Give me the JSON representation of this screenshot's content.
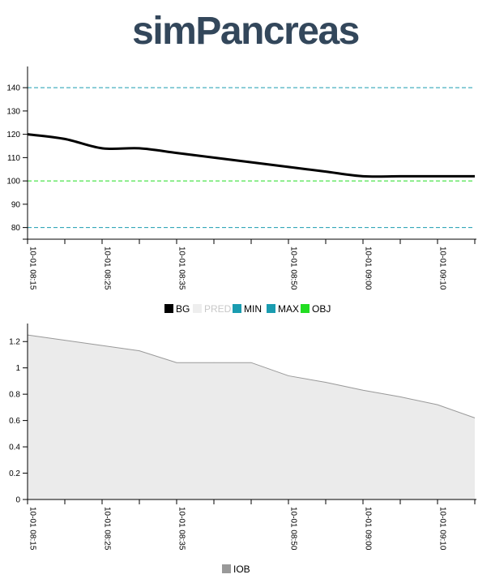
{
  "page": {
    "title": "simPancreas"
  },
  "chart_data": [
    {
      "type": "line",
      "x_type": "time",
      "x_ticks": [
        "10-01 08:15",
        "10-01 08:25",
        "10-01 08:35",
        "10-01 08:50",
        "10-01 09:00",
        "10-01 09:10"
      ],
      "xlim": [
        "10-01 08:15",
        "10-01 09:15"
      ],
      "ylim": [
        75,
        147
      ],
      "y_ticks": [
        80,
        90,
        100,
        110,
        120,
        130,
        140
      ],
      "series": [
        {
          "name": "BG",
          "color": "#000000",
          "x": [
            "10-01 08:15",
            "10-01 08:20",
            "10-01 08:25",
            "10-01 08:30",
            "10-01 08:35",
            "10-01 08:40",
            "10-01 08:45",
            "10-01 08:50",
            "10-01 08:55",
            "10-01 09:00",
            "10-01 09:05",
            "10-01 09:10",
            "10-01 09:15"
          ],
          "values": [
            120,
            118,
            114,
            114,
            112,
            110,
            108,
            106,
            104,
            102,
            102,
            102,
            102
          ]
        },
        {
          "name": "PRED",
          "color": "#eeeeee",
          "x": [],
          "values": []
        },
        {
          "name": "MIN",
          "color": "#1a9cb0",
          "line_style": "dashed",
          "values": [
            80
          ]
        },
        {
          "name": "MAX",
          "color": "#1a9cb0",
          "line_style": "dashed",
          "values": [
            140
          ]
        },
        {
          "name": "OBJ",
          "color": "#22dd22",
          "line_style": "dashed",
          "values": [
            100
          ]
        }
      ],
      "legend_placement": "bottom-center"
    },
    {
      "type": "area",
      "x_type": "time",
      "x_ticks": [
        "10-01 08:15",
        "10-01 08:25",
        "10-01 08:35",
        "10-01 08:50",
        "10-01 09:00",
        "10-01 09:10"
      ],
      "xlim": [
        "10-01 08:15",
        "10-01 09:15"
      ],
      "ylim": [
        0,
        1.3
      ],
      "y_ticks": [
        "0",
        "0.2",
        "0.4",
        "0.6",
        "0.8",
        "1",
        "1.2"
      ],
      "series": [
        {
          "name": "IOB",
          "color": "#999999",
          "fill": "#ebebeb",
          "x": [
            "10-01 08:15",
            "10-01 08:20",
            "10-01 08:25",
            "10-01 08:30",
            "10-01 08:35",
            "10-01 08:40",
            "10-01 08:45",
            "10-01 08:50",
            "10-01 08:55",
            "10-01 09:00",
            "10-01 09:05",
            "10-01 09:10",
            "10-01 09:15"
          ],
          "values": [
            1.25,
            1.21,
            1.17,
            1.13,
            1.04,
            1.04,
            1.04,
            0.94,
            0.89,
            0.83,
            0.78,
            0.72,
            0.62
          ]
        }
      ],
      "legend_placement": "bottom-center"
    }
  ]
}
